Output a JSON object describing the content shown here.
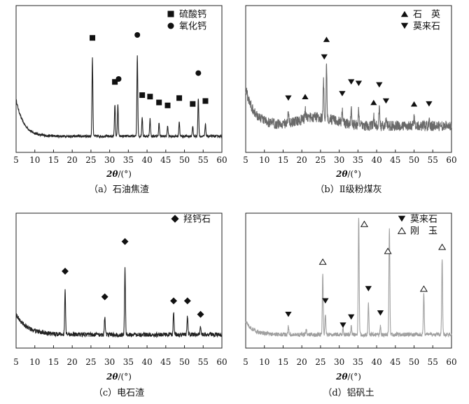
{
  "chart_data": [
    {
      "type": "line",
      "panel": "a",
      "caption": "（a）石油焦渣",
      "xlabel_symbol": "2θ",
      "xlabel_unit": "/(°)",
      "xlim": [
        5,
        60
      ],
      "xticks": [
        5,
        10,
        15,
        20,
        25,
        30,
        35,
        40,
        45,
        50,
        55,
        60
      ],
      "ylim": [
        0,
        100
      ],
      "line_color": "#222222",
      "baseline": 11,
      "decay": {
        "start_level": 25,
        "tau": 2.0
      },
      "noise": 0.8,
      "peaks": [
        {
          "x": 25.4,
          "y": 53
        },
        {
          "x": 31.4,
          "y": 22
        },
        {
          "x": 32.2,
          "y": 21
        },
        {
          "x": 37.4,
          "y": 55
        },
        {
          "x": 38.7,
          "y": 13
        },
        {
          "x": 40.8,
          "y": 12
        },
        {
          "x": 43.2,
          "y": 9
        },
        {
          "x": 45.5,
          "y": 7
        },
        {
          "x": 48.6,
          "y": 10
        },
        {
          "x": 52.2,
          "y": 7
        },
        {
          "x": 53.7,
          "y": 26
        },
        {
          "x": 55.6,
          "y": 8
        }
      ],
      "markers": [
        {
          "x": 25.4,
          "y": 78,
          "symbol": "square"
        },
        {
          "x": 31.4,
          "y": 48,
          "symbol": "square"
        },
        {
          "x": 32.4,
          "y": 50,
          "symbol": "circle"
        },
        {
          "x": 37.4,
          "y": 80,
          "symbol": "circle"
        },
        {
          "x": 38.7,
          "y": 39,
          "symbol": "square"
        },
        {
          "x": 40.8,
          "y": 38,
          "symbol": "square"
        },
        {
          "x": 43.2,
          "y": 34,
          "symbol": "square"
        },
        {
          "x": 45.5,
          "y": 32,
          "symbol": "square"
        },
        {
          "x": 48.6,
          "y": 37,
          "symbol": "square"
        },
        {
          "x": 52.2,
          "y": 33,
          "symbol": "square"
        },
        {
          "x": 53.7,
          "y": 54,
          "symbol": "circle"
        },
        {
          "x": 55.6,
          "y": 35,
          "symbol": "square"
        }
      ],
      "legend": [
        {
          "symbol": "square",
          "label": "硫酸钙"
        },
        {
          "symbol": "circle",
          "label": "氧化钙"
        }
      ]
    },
    {
      "type": "line",
      "panel": "b",
      "caption": "（b）Ⅱ级粉煤灰",
      "xlabel_symbol": "2θ",
      "xlabel_unit": "/(°)",
      "xlim": [
        5,
        60
      ],
      "xticks": [
        5,
        10,
        15,
        20,
        25,
        30,
        35,
        40,
        45,
        50,
        55,
        60
      ],
      "ylim": [
        0,
        100
      ],
      "line_color": "#6a6a6a",
      "baseline": 18,
      "decay": {
        "start_level": 25,
        "tau": 2.5
      },
      "hump": {
        "center": 24,
        "height": 6,
        "width": 7
      },
      "noise": 3.5,
      "peaks": [
        {
          "x": 16.4,
          "y": 8
        },
        {
          "x": 20.9,
          "y": 6
        },
        {
          "x": 25.8,
          "y": 24
        },
        {
          "x": 26.6,
          "y": 36
        },
        {
          "x": 30.8,
          "y": 9
        },
        {
          "x": 33.2,
          "y": 12
        },
        {
          "x": 35.2,
          "y": 11
        },
        {
          "x": 39.2,
          "y": 6
        },
        {
          "x": 40.7,
          "y": 12
        },
        {
          "x": 42.5,
          "y": 6
        },
        {
          "x": 50.0,
          "y": 5
        },
        {
          "x": 54.0,
          "y": 5
        }
      ],
      "markers": [
        {
          "x": 16.4,
          "y": 37,
          "symbol": "triangle-down"
        },
        {
          "x": 20.9,
          "y": 38,
          "symbol": "triangle-up"
        },
        {
          "x": 26.0,
          "y": 65,
          "symbol": "triangle-down"
        },
        {
          "x": 26.6,
          "y": 77,
          "symbol": "triangle-up"
        },
        {
          "x": 30.8,
          "y": 40,
          "symbol": "triangle-down"
        },
        {
          "x": 33.2,
          "y": 48,
          "symbol": "triangle-down"
        },
        {
          "x": 35.2,
          "y": 47,
          "symbol": "triangle-down"
        },
        {
          "x": 39.2,
          "y": 34,
          "symbol": "triangle-up"
        },
        {
          "x": 40.7,
          "y": 46,
          "symbol": "triangle-down"
        },
        {
          "x": 42.5,
          "y": 35,
          "symbol": "triangle-down"
        },
        {
          "x": 50.0,
          "y": 33,
          "symbol": "triangle-up"
        },
        {
          "x": 54.0,
          "y": 33,
          "symbol": "triangle-down"
        }
      ],
      "legend": [
        {
          "symbol": "triangle-up",
          "label": "石　英"
        },
        {
          "symbol": "triangle-down",
          "label": "莫来石"
        }
      ]
    },
    {
      "type": "line",
      "panel": "c",
      "caption": "（c）电石渣",
      "xlabel_symbol": "2θ",
      "xlabel_unit": "/(°)",
      "xlim": [
        5,
        60
      ],
      "xticks": [
        5,
        10,
        15,
        20,
        25,
        30,
        35,
        40,
        45,
        50,
        55,
        60
      ],
      "ylim": [
        0,
        100
      ],
      "line_color": "#222222",
      "baseline": 10,
      "decay": {
        "start_level": 15,
        "tau": 3.0
      },
      "noise": 1.6,
      "peaks": [
        {
          "x": 18.1,
          "y": 32
        },
        {
          "x": 28.7,
          "y": 13
        },
        {
          "x": 34.1,
          "y": 49
        },
        {
          "x": 47.1,
          "y": 17
        },
        {
          "x": 50.8,
          "y": 14
        },
        {
          "x": 54.3,
          "y": 7
        }
      ],
      "markers": [
        {
          "x": 18.1,
          "y": 57,
          "symbol": "diamond"
        },
        {
          "x": 28.7,
          "y": 38,
          "symbol": "diamond"
        },
        {
          "x": 34.1,
          "y": 79,
          "symbol": "diamond"
        },
        {
          "x": 47.1,
          "y": 35,
          "symbol": "diamond"
        },
        {
          "x": 50.8,
          "y": 35,
          "symbol": "diamond"
        },
        {
          "x": 54.3,
          "y": 25,
          "symbol": "diamond"
        }
      ],
      "legend": [
        {
          "symbol": "diamond",
          "label": "羟钙石"
        }
      ]
    },
    {
      "type": "line",
      "panel": "d",
      "caption": "（d）铝矾土",
      "xlabel_symbol": "2θ",
      "xlabel_unit": "/(°)",
      "xlim": [
        5,
        60
      ],
      "xticks": [
        5,
        10,
        15,
        20,
        25,
        30,
        35,
        40,
        45,
        50,
        55,
        60
      ],
      "ylim": [
        0,
        100
      ],
      "line_color": "#a0a0a0",
      "baseline": 10,
      "decay": {
        "start_level": 10,
        "tau": 2.0
      },
      "noise": 1.5,
      "peaks": [
        {
          "x": 16.4,
          "y": 6
        },
        {
          "x": 21.2,
          "y": 4
        },
        {
          "x": 25.6,
          "y": 46
        },
        {
          "x": 26.3,
          "y": 16
        },
        {
          "x": 31.0,
          "y": 5
        },
        {
          "x": 33.2,
          "y": 7
        },
        {
          "x": 35.2,
          "y": 88
        },
        {
          "x": 37.8,
          "y": 23
        },
        {
          "x": 41.0,
          "y": 6
        },
        {
          "x": 43.4,
          "y": 80
        },
        {
          "x": 52.6,
          "y": 30
        },
        {
          "x": 57.5,
          "y": 56
        }
      ],
      "markers": [
        {
          "x": 16.4,
          "y": 25,
          "symbol": "triangle-down"
        },
        {
          "x": 25.6,
          "y": 64,
          "symbol": "triangle-up-open"
        },
        {
          "x": 26.3,
          "y": 35,
          "symbol": "triangle-down"
        },
        {
          "x": 31.0,
          "y": 17,
          "symbol": "triangle-down"
        },
        {
          "x": 33.2,
          "y": 23,
          "symbol": "triangle-down"
        },
        {
          "x": 36.7,
          "y": 92,
          "symbol": "triangle-up-open"
        },
        {
          "x": 37.8,
          "y": 44,
          "symbol": "triangle-down"
        },
        {
          "x": 41.0,
          "y": 26,
          "symbol": "triangle-down"
        },
        {
          "x": 43.0,
          "y": 72,
          "symbol": "triangle-up-open"
        },
        {
          "x": 52.6,
          "y": 44,
          "symbol": "triangle-up-open"
        },
        {
          "x": 57.5,
          "y": 75,
          "symbol": "triangle-up-open"
        }
      ],
      "legend": [
        {
          "symbol": "triangle-down",
          "label": "莫来石"
        },
        {
          "symbol": "triangle-up-open",
          "label": "刚　玉"
        }
      ]
    }
  ]
}
